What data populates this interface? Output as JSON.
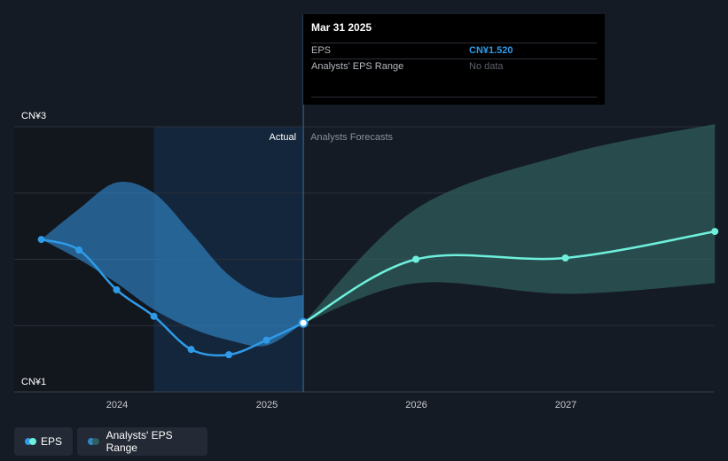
{
  "tooltip": {
    "date": "Mar 31 2025",
    "rows": [
      {
        "label": "EPS",
        "value": "CN¥1.520"
      },
      {
        "label": "Analysts' EPS Range",
        "value": "No data"
      }
    ]
  },
  "legend": {
    "eps_label": "EPS",
    "range_label": "Analysts' EPS Range"
  },
  "colors": {
    "background": "#151b24",
    "eps_actual": "#2f9be8",
    "eps_forecast": "#6ff0dc",
    "range_actual": "#2f86c8",
    "range_forecast": "#2f5e5c",
    "tooltip_bg": "#000000"
  },
  "chart_data": {
    "type": "line",
    "y_unit_prefix": "CN¥",
    "ylim": [
      1,
      3
    ],
    "y_tick_labels": [
      "CN¥3",
      "CN¥1"
    ],
    "x_ticks": [
      2024,
      2025,
      2026,
      2027
    ],
    "x_tick_labels": [
      "2024",
      "2025",
      "2026",
      "2027"
    ],
    "xlim": [
      "2023-07-01",
      "2027-12-31"
    ],
    "region_labels": {
      "actual": "Actual",
      "forecast": "Analysts Forecasts"
    },
    "forecast_start": "2025-03-31",
    "series": [
      {
        "name": "EPS",
        "segment": "actual",
        "points": [
          {
            "date": "2023-06-30",
            "value": 2.15
          },
          {
            "date": "2023-09-30",
            "value": 2.07
          },
          {
            "date": "2023-12-31",
            "value": 1.77
          },
          {
            "date": "2024-03-31",
            "value": 1.57
          },
          {
            "date": "2024-06-30",
            "value": 1.32
          },
          {
            "date": "2024-09-30",
            "value": 1.28
          },
          {
            "date": "2024-12-31",
            "value": 1.39
          },
          {
            "date": "2025-03-31",
            "value": 1.52
          }
        ]
      },
      {
        "name": "EPS",
        "segment": "forecast",
        "points": [
          {
            "date": "2025-03-31",
            "value": 1.52
          },
          {
            "date": "2025-12-31",
            "value": 2.0
          },
          {
            "date": "2026-12-31",
            "value": 2.01
          },
          {
            "date": "2027-12-31",
            "value": 2.21
          }
        ]
      },
      {
        "name": "Analysts' EPS Range",
        "segment": "actual",
        "upper": [
          {
            "date": "2023-06-30",
            "value": 2.15
          },
          {
            "date": "2023-09-30",
            "value": 2.38
          },
          {
            "date": "2023-12-31",
            "value": 2.58
          },
          {
            "date": "2024-03-31",
            "value": 2.5
          },
          {
            "date": "2024-06-30",
            "value": 2.2
          },
          {
            "date": "2024-09-30",
            "value": 1.88
          },
          {
            "date": "2024-12-31",
            "value": 1.72
          },
          {
            "date": "2025-03-31",
            "value": 1.73
          }
        ],
        "lower": [
          {
            "date": "2023-06-30",
            "value": 2.15
          },
          {
            "date": "2023-09-30",
            "value": 2.0
          },
          {
            "date": "2023-12-31",
            "value": 1.82
          },
          {
            "date": "2024-03-31",
            "value": 1.62
          },
          {
            "date": "2024-06-30",
            "value": 1.48
          },
          {
            "date": "2024-09-30",
            "value": 1.39
          },
          {
            "date": "2024-12-31",
            "value": 1.35
          },
          {
            "date": "2025-03-31",
            "value": 1.52
          }
        ]
      },
      {
        "name": "Analysts' EPS Range",
        "segment": "forecast",
        "upper": [
          {
            "date": "2025-03-31",
            "value": 1.52
          },
          {
            "date": "2025-12-31",
            "value": 2.38
          },
          {
            "date": "2026-12-31",
            "value": 2.79
          },
          {
            "date": "2027-12-31",
            "value": 3.02
          }
        ],
        "lower": [
          {
            "date": "2025-03-31",
            "value": 1.52
          },
          {
            "date": "2025-12-31",
            "value": 1.82
          },
          {
            "date": "2026-12-31",
            "value": 1.74
          },
          {
            "date": "2027-12-31",
            "value": 1.82
          }
        ]
      }
    ]
  }
}
